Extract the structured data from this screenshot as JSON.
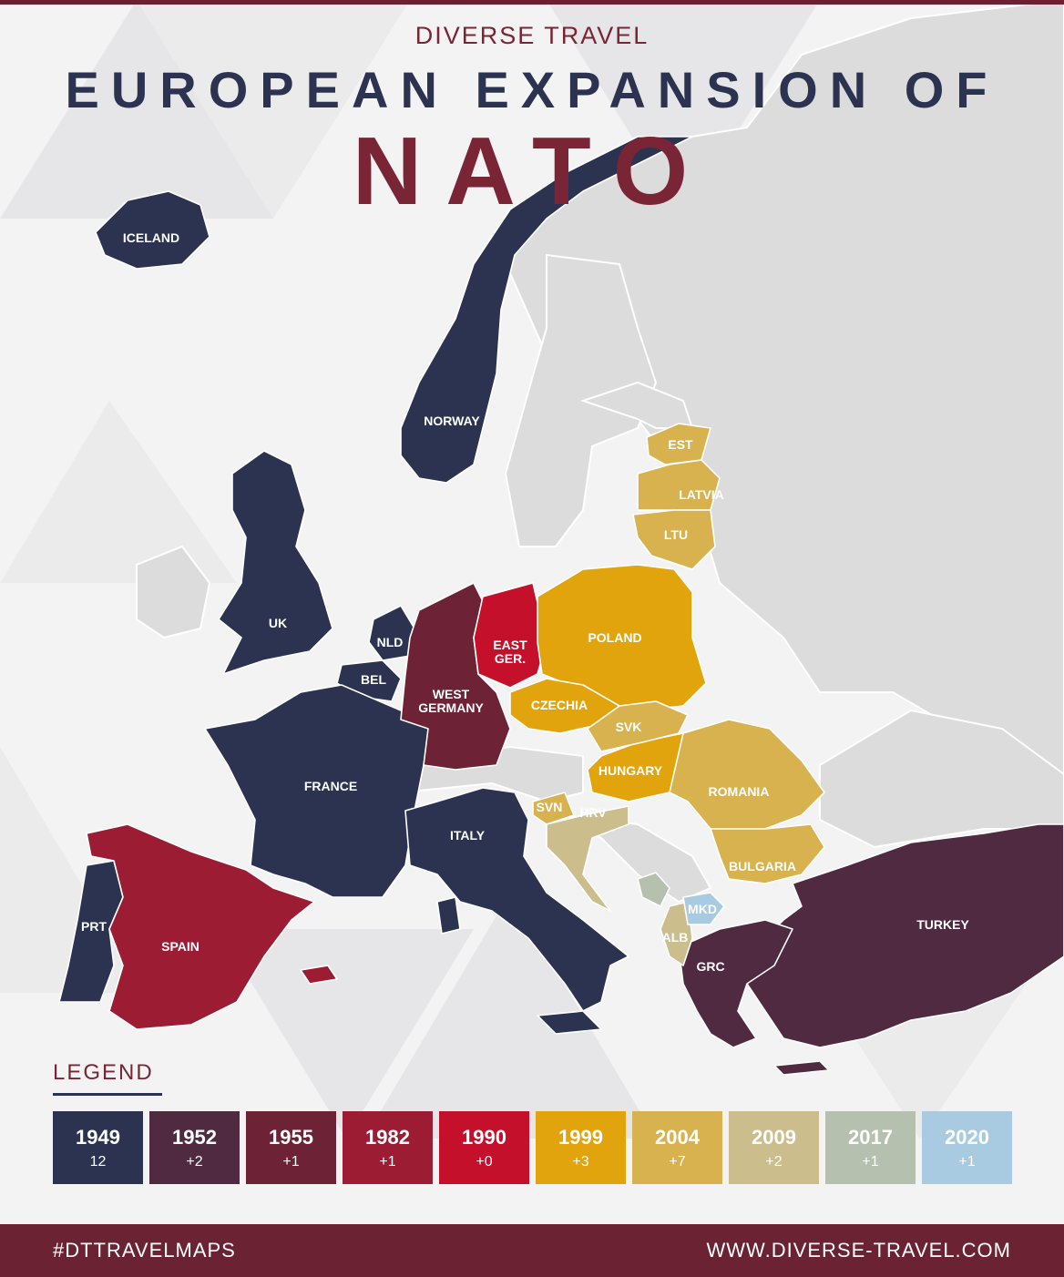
{
  "header": {
    "brand": "DIVERSE TRAVEL",
    "title_line1": "EUROPEAN EXPANSION OF",
    "title_line2": "NATO"
  },
  "colors": {
    "background": "#f3f3f4",
    "land_non_member": "#dcdcdc",
    "accent": "#7a2536",
    "navy": "#2b3350"
  },
  "countries": [
    {
      "id": "iceland",
      "label": "ICELAND",
      "year": 1949
    },
    {
      "id": "norway",
      "label": "NORWAY",
      "year": 1949
    },
    {
      "id": "uk",
      "label": "UK",
      "year": 1949
    },
    {
      "id": "nld",
      "label": "NLD",
      "year": 1949
    },
    {
      "id": "bel",
      "label": "BEL",
      "year": 1949
    },
    {
      "id": "france",
      "label": "FRANCE",
      "year": 1949
    },
    {
      "id": "italy",
      "label": "ITALY",
      "year": 1949
    },
    {
      "id": "prt",
      "label": "PRT",
      "year": 1949
    },
    {
      "id": "turkey",
      "label": "TURKEY",
      "year": 1952
    },
    {
      "id": "grc",
      "label": "GRC",
      "year": 1952
    },
    {
      "id": "west-germany",
      "label": "WEST\nGERMANY",
      "year": 1955
    },
    {
      "id": "spain",
      "label": "SPAIN",
      "year": 1982
    },
    {
      "id": "east-ger",
      "label": "EAST\nGER.",
      "year": 1990
    },
    {
      "id": "poland",
      "label": "POLAND",
      "year": 1999
    },
    {
      "id": "czechia",
      "label": "CZECHIA",
      "year": 1999
    },
    {
      "id": "hungary",
      "label": "HUNGARY",
      "year": 1999
    },
    {
      "id": "est",
      "label": "EST",
      "year": 2004
    },
    {
      "id": "latvia",
      "label": "LATVIA",
      "year": 2004
    },
    {
      "id": "ltu",
      "label": "LTU",
      "year": 2004
    },
    {
      "id": "svk",
      "label": "SVK",
      "year": 2004
    },
    {
      "id": "svn",
      "label": "SVN",
      "year": 2004
    },
    {
      "id": "romania",
      "label": "ROMANIA",
      "year": 2004
    },
    {
      "id": "bulgaria",
      "label": "BULGARIA",
      "year": 2004
    },
    {
      "id": "hrv",
      "label": "HRV",
      "year": 2009
    },
    {
      "id": "alb",
      "label": "ALB",
      "year": 2009
    },
    {
      "id": "mne",
      "label": "",
      "year": 2017
    },
    {
      "id": "mkd",
      "label": "MKD",
      "year": 2020
    }
  ],
  "legend": {
    "title": "LEGEND",
    "items": [
      {
        "year": "1949",
        "count": "12",
        "color": "#2b3350"
      },
      {
        "year": "1952",
        "count": "+2",
        "color": "#4f2a40"
      },
      {
        "year": "1955",
        "count": "+1",
        "color": "#6e2235"
      },
      {
        "year": "1982",
        "count": "+1",
        "color": "#9b1c33"
      },
      {
        "year": "1990",
        "count": "+0",
        "color": "#c4102a"
      },
      {
        "year": "1999",
        "count": "+3",
        "color": "#e2a40c"
      },
      {
        "year": "2004",
        "count": "+7",
        "color": "#d8b24f"
      },
      {
        "year": "2009",
        "count": "+2",
        "color": "#cbbd8c"
      },
      {
        "year": "2017",
        "count": "+1",
        "color": "#b5c1ae"
      },
      {
        "year": "2020",
        "count": "+1",
        "color": "#a9cbe2"
      }
    ]
  },
  "footer": {
    "hashtag": "#DTTRAVELMAPS",
    "website": "WWW.DIVERSE-TRAVEL.COM"
  }
}
